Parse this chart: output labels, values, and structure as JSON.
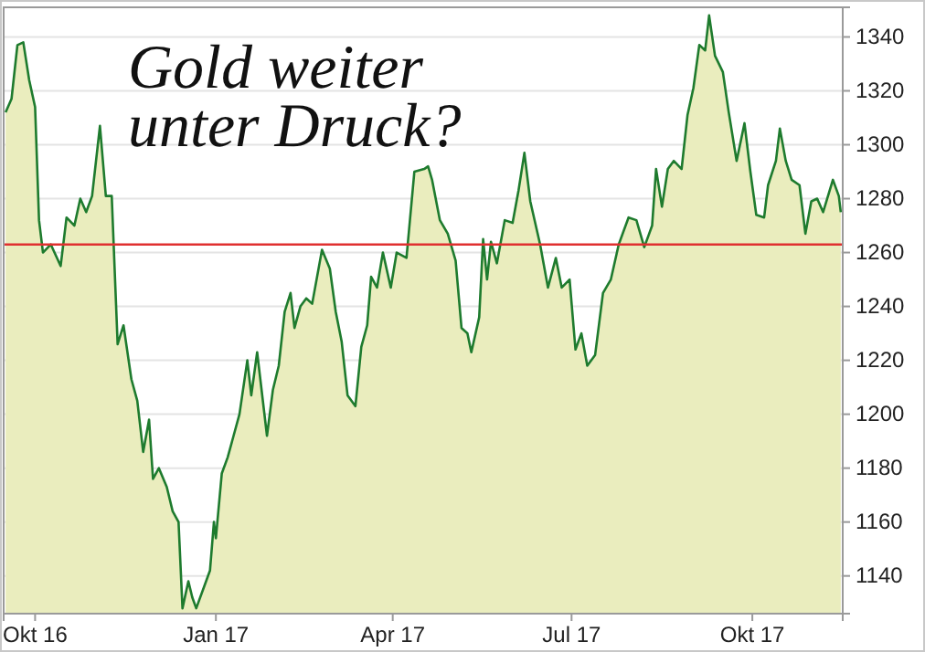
{
  "chart_data": {
    "type": "area",
    "title": "Gold weiter unter Druck?",
    "x": [
      "2016-09-16",
      "2016-09-19",
      "2016-09-22",
      "2016-09-25",
      "2016-09-28",
      "2016-10-01",
      "2016-10-03",
      "2016-10-05",
      "2016-10-09",
      "2016-10-14",
      "2016-10-17",
      "2016-10-21",
      "2016-10-24",
      "2016-10-27",
      "2016-10-30",
      "2016-11-03",
      "2016-11-06",
      "2016-11-09",
      "2016-11-12",
      "2016-11-15",
      "2016-11-19",
      "2016-11-22",
      "2016-11-25",
      "2016-11-28",
      "2016-11-30",
      "2016-12-03",
      "2016-12-07",
      "2016-12-10",
      "2016-12-13",
      "2016-12-15",
      "2016-12-18",
      "2016-12-20",
      "2016-12-22",
      "2016-12-26",
      "2016-12-29",
      "2016-12-31",
      "2017-01-01",
      "2017-01-04",
      "2017-01-07",
      "2017-01-10",
      "2017-01-13",
      "2017-01-17",
      "2017-01-19",
      "2017-01-22",
      "2017-01-27",
      "2017-01-30",
      "2017-02-02",
      "2017-02-05",
      "2017-02-08",
      "2017-02-10",
      "2017-02-13",
      "2017-02-16",
      "2017-02-19",
      "2017-02-24",
      "2017-02-28",
      "2017-03-03",
      "2017-03-06",
      "2017-03-09",
      "2017-03-13",
      "2017-03-16",
      "2017-03-19",
      "2017-03-21",
      "2017-03-24",
      "2017-03-27",
      "2017-03-31",
      "2017-04-03",
      "2017-04-08",
      "2017-04-12",
      "2017-04-17",
      "2017-04-19",
      "2017-04-21",
      "2017-04-25",
      "2017-04-29",
      "2017-05-03",
      "2017-05-06",
      "2017-05-09",
      "2017-05-11",
      "2017-05-15",
      "2017-05-17",
      "2017-05-19",
      "2017-05-21",
      "2017-05-24",
      "2017-05-28",
      "2017-06-01",
      "2017-06-04",
      "2017-06-07",
      "2017-06-10",
      "2017-06-15",
      "2017-06-19",
      "2017-06-23",
      "2017-06-26",
      "2017-06-30",
      "2017-07-03",
      "2017-07-06",
      "2017-07-09",
      "2017-07-13",
      "2017-07-17",
      "2017-07-21",
      "2017-07-25",
      "2017-07-30",
      "2017-08-03",
      "2017-08-07",
      "2017-08-11",
      "2017-08-13",
      "2017-08-16",
      "2017-08-19",
      "2017-08-22",
      "2017-08-26",
      "2017-08-29",
      "2017-09-01",
      "2017-09-04",
      "2017-09-07",
      "2017-09-09",
      "2017-09-12",
      "2017-09-16",
      "2017-09-19",
      "2017-09-23",
      "2017-09-27",
      "2017-09-30",
      "2017-10-03",
      "2017-10-07",
      "2017-10-09",
      "2017-10-13",
      "2017-10-15",
      "2017-10-18",
      "2017-10-21",
      "2017-10-25",
      "2017-10-28",
      "2017-10-31",
      "2017-11-03",
      "2017-11-06",
      "2017-11-11",
      "2017-11-14",
      "2017-11-15"
    ],
    "series": [
      {
        "color": "#1e7b2e",
        "values": [
          1312,
          1317,
          1337,
          1338,
          1324,
          1314,
          1272,
          1260,
          1263,
          1255,
          1273,
          1270,
          1280,
          1275,
          1281,
          1307,
          1281,
          1281,
          1226,
          1233,
          1213,
          1205,
          1186,
          1198,
          1176,
          1180,
          1173,
          1164,
          1160,
          1128,
          1138,
          1132,
          1128,
          1136,
          1142,
          1160,
          1154,
          1178,
          1184,
          1192,
          1200,
          1220,
          1207,
          1223,
          1192,
          1209,
          1218,
          1238,
          1245,
          1232,
          1240,
          1243,
          1241,
          1261,
          1254,
          1238,
          1227,
          1207,
          1203,
          1225,
          1233,
          1251,
          1247,
          1260,
          1247,
          1260,
          1258,
          1290,
          1291,
          1292,
          1287,
          1272,
          1267,
          1257,
          1232,
          1230,
          1223,
          1236,
          1265,
          1250,
          1264,
          1256,
          1272,
          1271,
          1283,
          1297,
          1279,
          1263,
          1247,
          1258,
          1247,
          1250,
          1224,
          1230,
          1218,
          1222,
          1245,
          1250,
          1263,
          1273,
          1272,
          1262,
          1270,
          1291,
          1277,
          1291,
          1294,
          1291,
          1311,
          1321,
          1337,
          1335,
          1348,
          1333,
          1327,
          1312,
          1294,
          1308,
          1290,
          1274,
          1273,
          1285,
          1294,
          1306,
          1294,
          1287,
          1285,
          1267,
          1279,
          1280,
          1275,
          1287,
          1281,
          1275
        ]
      }
    ],
    "xlim": [
      "2016-09-15",
      "2017-11-16"
    ],
    "xticks": [
      {
        "value": "2016-10-01",
        "label": "Okt 16"
      },
      {
        "value": "2017-01-01",
        "label": "Jan 17"
      },
      {
        "value": "2017-04-01",
        "label": "Apr 17"
      },
      {
        "value": "2017-07-01",
        "label": "Jul 17"
      },
      {
        "value": "2017-10-01",
        "label": "Okt 17"
      }
    ],
    "ylim": [
      1126,
      1351
    ],
    "yticks": [
      1140,
      1160,
      1180,
      1200,
      1220,
      1240,
      1260,
      1280,
      1300,
      1320,
      1340
    ],
    "grid": "y",
    "ref_lines": [
      {
        "axis": "y",
        "value": 1263,
        "color": "#e03030"
      }
    ]
  }
}
